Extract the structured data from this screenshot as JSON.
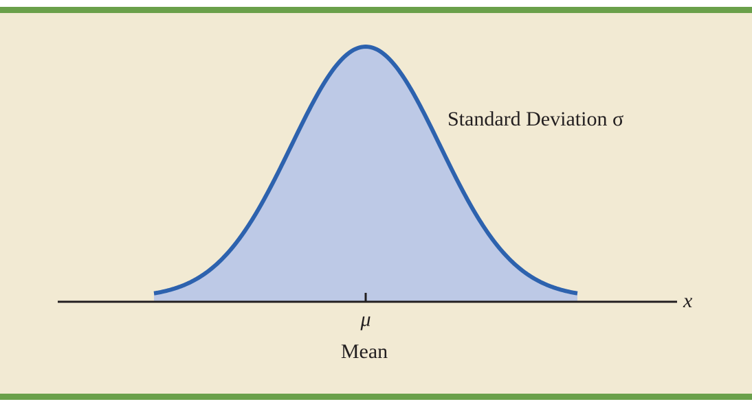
{
  "colors": {
    "band": "#6aa04a",
    "panel": "#f2ead3",
    "curve_stroke": "#2d62ae",
    "curve_fill": "#bdc9e6",
    "axis": "#231f20"
  },
  "labels": {
    "std_dev": "Standard Deviation σ",
    "mu": "μ",
    "mean": "Mean",
    "x_axis": "x"
  }
}
